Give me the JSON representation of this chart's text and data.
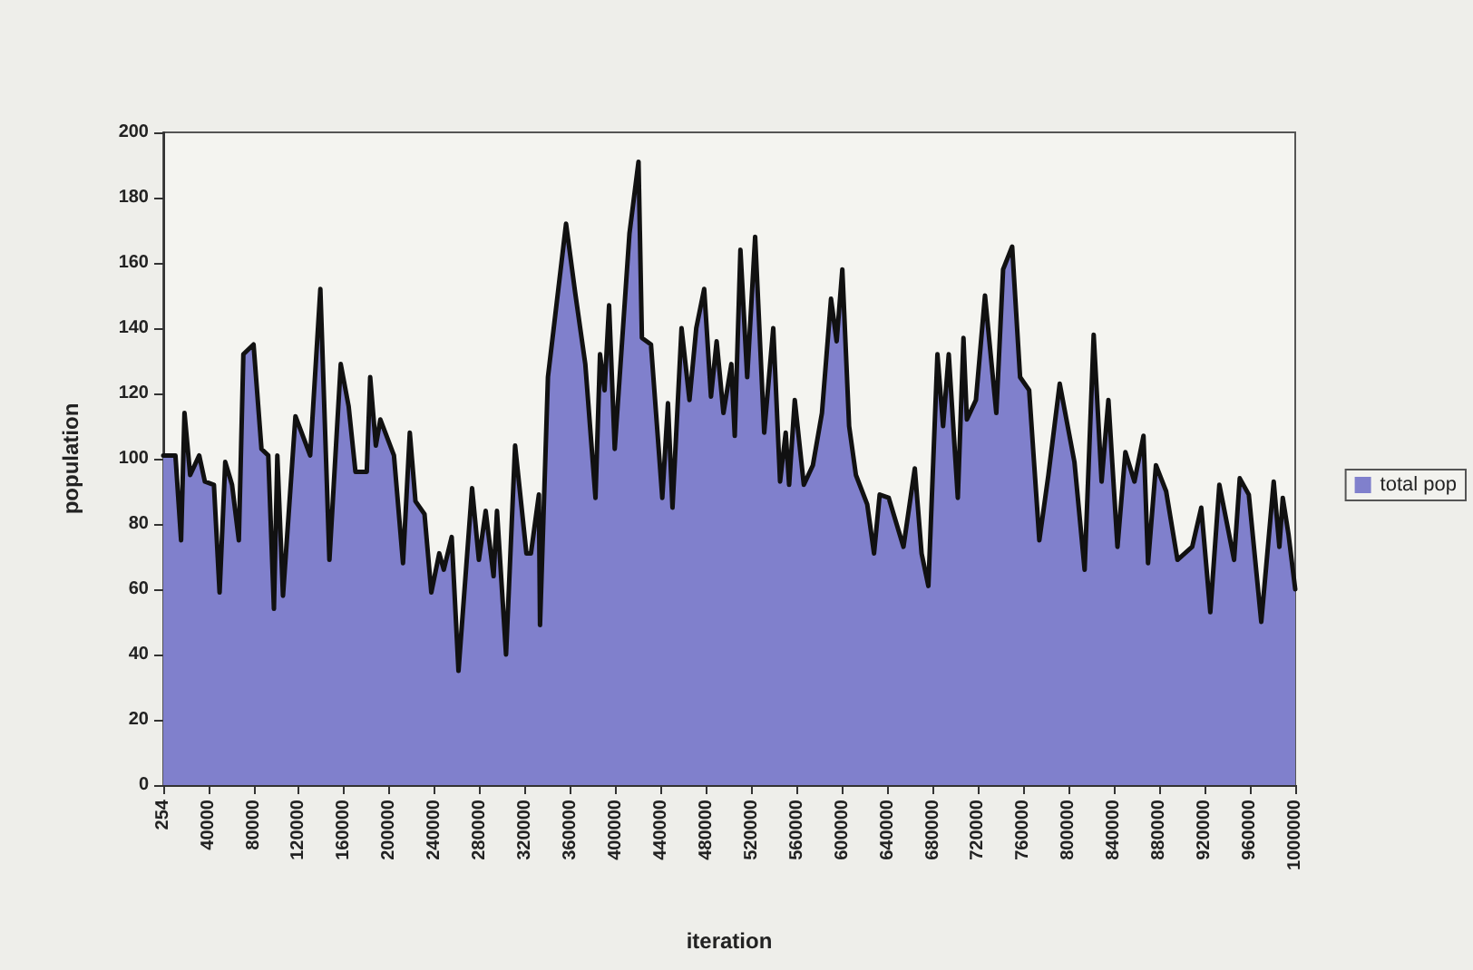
{
  "chart_data": {
    "type": "area",
    "xlabel": "iteration",
    "ylabel": "population",
    "legend": "right",
    "grid": false,
    "marker": "none",
    "line_style": "solid",
    "xlim": [
      254,
      1000000
    ],
    "xticks": [
      254,
      40000,
      80000,
      120000,
      160000,
      200000,
      240000,
      280000,
      320000,
      360000,
      400000,
      440000,
      480000,
      520000,
      560000,
      600000,
      640000,
      680000,
      720000,
      760000,
      800000,
      840000,
      880000,
      920000,
      960000,
      1000000
    ],
    "ylim": [
      0,
      200
    ],
    "yticks": [
      0,
      20,
      40,
      60,
      80,
      100,
      120,
      140,
      160,
      180,
      200
    ],
    "x": [
      254,
      11000,
      16000,
      19000,
      24000,
      32000,
      37000,
      45000,
      50000,
      55000,
      61000,
      67000,
      71000,
      80000,
      87000,
      93000,
      98000,
      101000,
      106000,
      117000,
      130000,
      139000,
      147000,
      157000,
      164000,
      170000,
      180000,
      183000,
      188000,
      192000,
      204000,
      212000,
      218000,
      223000,
      231000,
      237000,
      244000,
      248000,
      255000,
      261000,
      273000,
      279000,
      285000,
      292000,
      295000,
      303000,
      311000,
      321000,
      325000,
      332000,
      333000,
      340000,
      356000,
      364000,
      373000,
      382000,
      386000,
      390000,
      394000,
      399000,
      412000,
      420000,
      423000,
      431000,
      441000,
      446000,
      450000,
      458000,
      465000,
      471000,
      478000,
      484000,
      489000,
      495000,
      502000,
      505000,
      510000,
      516000,
      523000,
      531000,
      539000,
      545000,
      550000,
      553000,
      558000,
      566000,
      574000,
      582000,
      590000,
      595000,
      600000,
      606000,
      612000,
      622000,
      628000,
      633000,
      641000,
      654000,
      664000,
      670000,
      676000,
      684000,
      689000,
      694000,
      702000,
      707000,
      710000,
      718000,
      726000,
      736000,
      742000,
      750000,
      757000,
      765000,
      774000,
      782000,
      792000,
      805000,
      814000,
      822000,
      829000,
      835000,
      843000,
      850000,
      858000,
      866000,
      870000,
      877000,
      886000,
      896000,
      909000,
      917000,
      925000,
      933000,
      946000,
      951000,
      959000,
      970000,
      981000,
      986000,
      989000,
      994000,
      1000000
    ],
    "series": [
      {
        "name": "total pop",
        "color": "#8080cc",
        "values": [
          101,
          101,
          75,
          114,
          95,
          101,
          93,
          92,
          59,
          99,
          92,
          75,
          132,
          135,
          103,
          101,
          54,
          101,
          58,
          113,
          101,
          152,
          69,
          129,
          116,
          96,
          96,
          125,
          104,
          112,
          101,
          68,
          108,
          87,
          83,
          59,
          71,
          66,
          76,
          35,
          91,
          69,
          84,
          64,
          84,
          40,
          104,
          71,
          71,
          89,
          49,
          125,
          172,
          151,
          129,
          88,
          132,
          121,
          147,
          103,
          169,
          191,
          137,
          135,
          88,
          117,
          85,
          140,
          118,
          140,
          152,
          119,
          136,
          114,
          129,
          107,
          164,
          125,
          168,
          108,
          140,
          93,
          108,
          92,
          118,
          92,
          98,
          114,
          149,
          136,
          158,
          110,
          95,
          86,
          71,
          89,
          88,
          73,
          97,
          71,
          61,
          132,
          110,
          132,
          88,
          137,
          112,
          118,
          150,
          114,
          158,
          165,
          125,
          121,
          75,
          95,
          123,
          99,
          66,
          138,
          93,
          118,
          73,
          102,
          93,
          107,
          68,
          98,
          90,
          69,
          73,
          85,
          53,
          92,
          69,
          94,
          89,
          50,
          93,
          73,
          88,
          77,
          60
        ]
      }
    ]
  }
}
